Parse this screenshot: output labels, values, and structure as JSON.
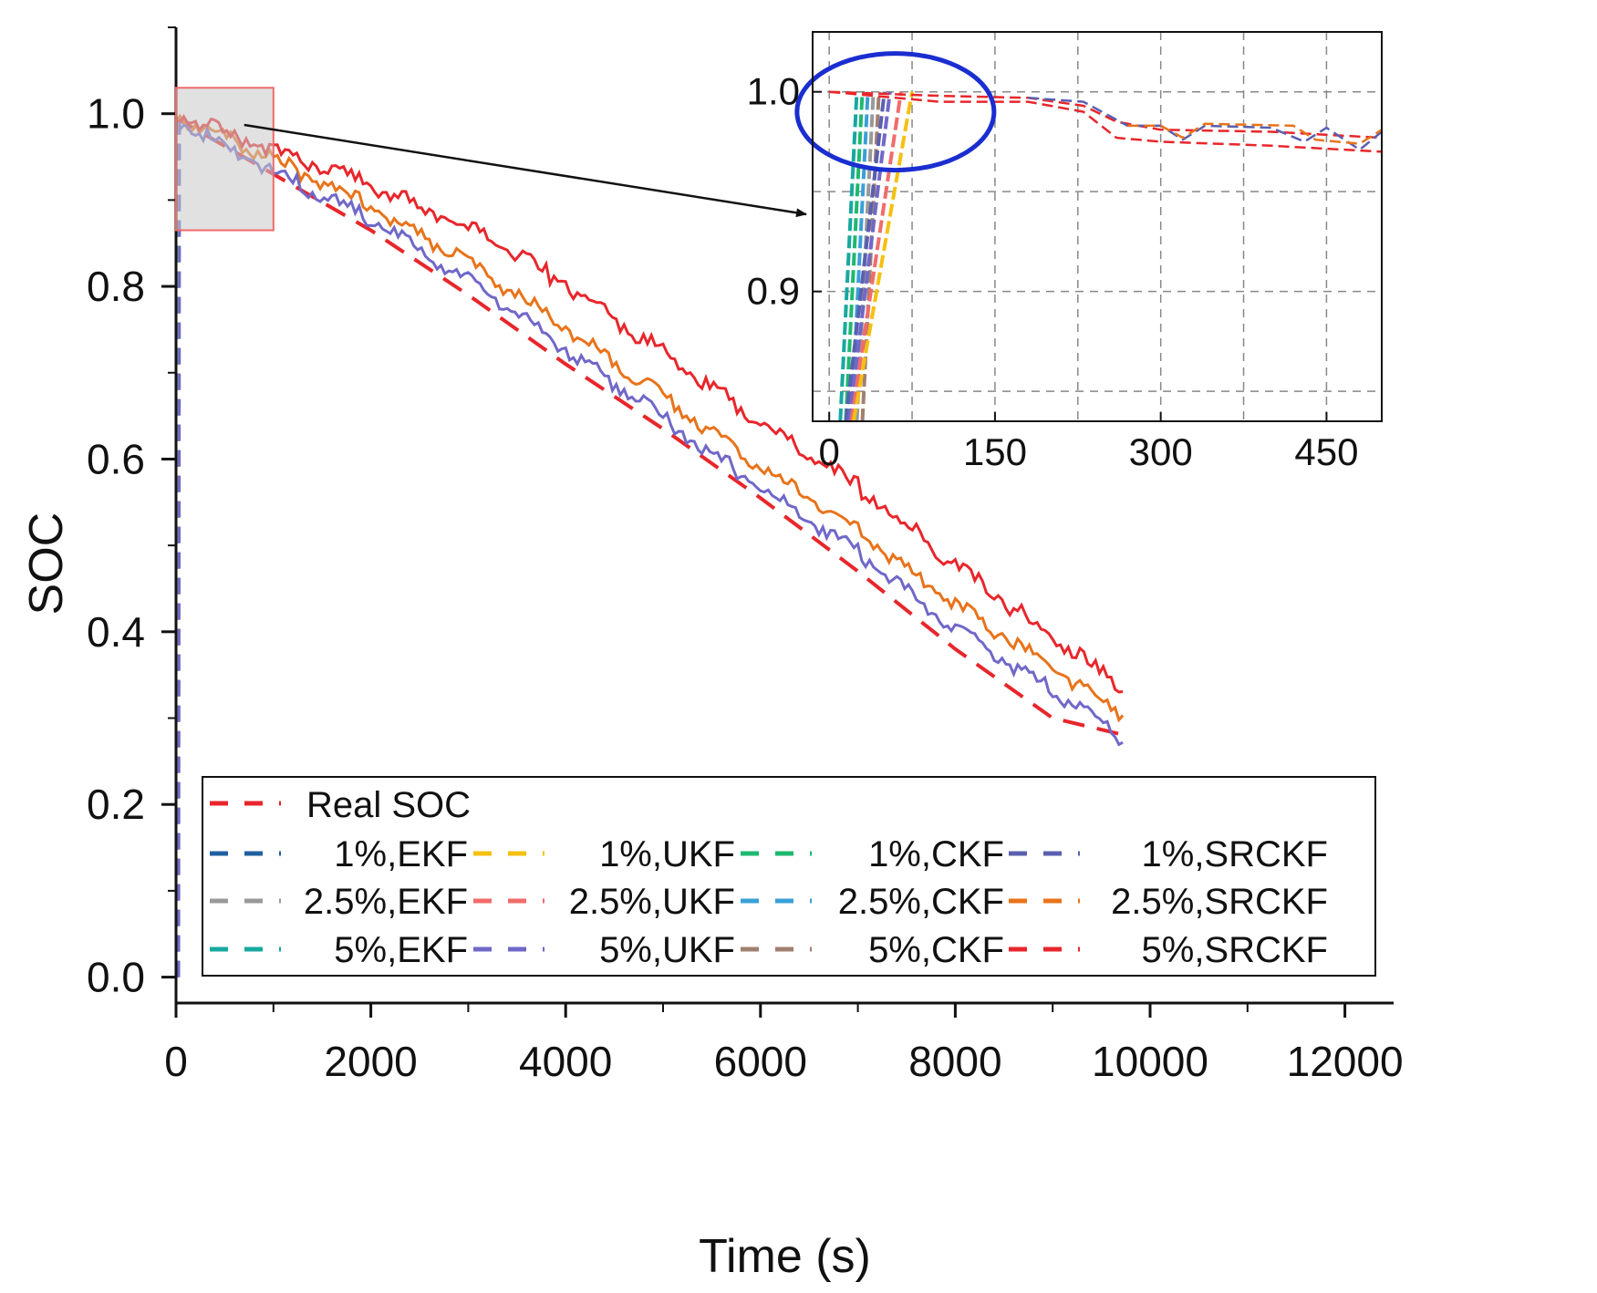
{
  "chart_data": [
    {
      "type": "line",
      "xlabel": "Time (s)",
      "ylabel": "SOC",
      "xlim": [
        0,
        12500
      ],
      "ylim": [
        -0.03,
        1.1
      ],
      "x_ticks": [
        0,
        2000,
        4000,
        6000,
        8000,
        10000,
        12000
      ],
      "x_tick_labels": [
        "0",
        "2000",
        "4000",
        "6000",
        "8000",
        "10000",
        "12000"
      ],
      "y_ticks": [
        0.0,
        0.2,
        0.4,
        0.6,
        0.8,
        1.0
      ],
      "y_tick_labels": [
        "0.0",
        "0.2",
        "0.4",
        "0.6",
        "0.8",
        "1.0"
      ],
      "zoom_region": {
        "x": [
          0,
          1000
        ],
        "y": [
          0.865,
          1.03
        ]
      },
      "legend": {
        "position": "bottom-inside",
        "header": {
          "label": "Real SOC",
          "color": "#e8262b"
        },
        "entries": [
          {
            "label": "1%,EKF",
            "color": "#1f5fa0"
          },
          {
            "label": "1%,UKF",
            "color": "#f5c010"
          },
          {
            "label": "1%,CKF",
            "color": "#1fb870"
          },
          {
            "label": "1%,SRCKF",
            "color": "#5a5fb0"
          },
          {
            "label": "2.5%,EKF",
            "color": "#999999"
          },
          {
            "label": "2.5%,UKF",
            "color": "#f26b6b"
          },
          {
            "label": "2.5%,CKF",
            "color": "#3aa0d8"
          },
          {
            "label": "2.5%,SRCKF",
            "color": "#e8731a"
          },
          {
            "label": "5%,EKF",
            "color": "#17a8a0"
          },
          {
            "label": "5%,UKF",
            "color": "#7068c8"
          },
          {
            "label": "5%,CKF",
            "color": "#a08070"
          },
          {
            "label": "5%,SRCKF",
            "color": "#e8262b"
          }
        ]
      },
      "series": [
        {
          "name": "Real SOC",
          "color": "#e8262b",
          "dash": true,
          "noise": 0,
          "x": [
            0,
            1000,
            2000,
            3000,
            4000,
            5000,
            6000,
            7000,
            8000,
            9000,
            9750
          ],
          "values": [
            0.995,
            0.93,
            0.865,
            0.79,
            0.71,
            0.635,
            0.555,
            0.47,
            0.38,
            0.3,
            0.28
          ]
        },
        {
          "name": "2.5%,SRCKF estimate",
          "color": "#e8731a",
          "dash": false,
          "noise": 0.012,
          "x": [
            0,
            1000,
            2000,
            3000,
            4000,
            5000,
            6000,
            7000,
            8000,
            9000,
            9750
          ],
          "values": [
            0.995,
            0.945,
            0.89,
            0.825,
            0.75,
            0.67,
            0.59,
            0.515,
            0.43,
            0.355,
            0.3
          ]
        },
        {
          "name": "5%,UKF estimate",
          "color": "#7068c8",
          "dash": false,
          "noise": 0.012,
          "x": [
            0,
            1000,
            2000,
            3000,
            4000,
            5000,
            6000,
            7000,
            8000,
            9000,
            9750
          ],
          "values": [
            0.99,
            0.93,
            0.875,
            0.805,
            0.725,
            0.645,
            0.565,
            0.49,
            0.4,
            0.33,
            0.27
          ]
        },
        {
          "name": "5%,SRCKF estimate",
          "color": "#e8262b",
          "dash": false,
          "noise": 0.014,
          "x": [
            0,
            1000,
            2000,
            3000,
            4000,
            5000,
            6000,
            7000,
            8000,
            9000,
            9750
          ],
          "values": [
            0.995,
            0.955,
            0.915,
            0.865,
            0.8,
            0.72,
            0.64,
            0.565,
            0.475,
            0.39,
            0.33
          ]
        }
      ]
    },
    {
      "type": "line",
      "role": "inset",
      "xlim": [
        -15,
        500
      ],
      "ylim": [
        0.835,
        1.03
      ],
      "x_ticks": [
        0,
        150,
        300,
        450
      ],
      "x_tick_labels": [
        "0",
        "150",
        "300",
        "450"
      ],
      "x_minor_ticks": [
        75,
        225,
        375
      ],
      "y_ticks": [
        0.9,
        1.0
      ],
      "y_tick_labels": [
        "0.9",
        "1.0"
      ],
      "y_grid": [
        0.85,
        0.9,
        0.95,
        1.0
      ],
      "grid": true,
      "highlight": {
        "shape": "ellipse",
        "color": "#1a2ed0",
        "center": [
          60,
          0.99
        ],
        "note": "convergence region"
      },
      "series": [
        {
          "name": "Real SOC",
          "color": "#e8262b",
          "x": [
            0,
            100,
            180,
            230,
            260,
            300,
            400,
            500
          ],
          "values": [
            1.0,
            0.998,
            0.997,
            0.993,
            0.985,
            0.981,
            0.98,
            0.977
          ]
        },
        {
          "name": "Real SOC (lower)",
          "color": "#e8262b",
          "x": [
            0,
            100,
            180,
            230,
            260,
            300,
            400,
            500
          ],
          "values": [
            1.0,
            0.995,
            0.995,
            0.99,
            0.977,
            0.975,
            0.973,
            0.97
          ]
        },
        {
          "name": "5%,UKF",
          "color": "#5a5fb0",
          "x": [
            180,
            230,
            270,
            300,
            320,
            340,
            400,
            430,
            450,
            480,
            500
          ],
          "values": [
            0.997,
            0.995,
            0.983,
            0.983,
            0.976,
            0.983,
            0.982,
            0.975,
            0.982,
            0.971,
            0.98
          ]
        },
        {
          "name": "2.5%,SRCKF",
          "color": "#e8731a",
          "x": [
            270,
            300,
            320,
            340,
            420,
            440,
            480,
            500
          ],
          "values": [
            0.983,
            0.983,
            0.977,
            0.984,
            0.983,
            0.976,
            0.974,
            0.981
          ]
        }
      ],
      "converging_traces": [
        {
          "color": "#17a8a0",
          "x_start": 10,
          "x_end": 25
        },
        {
          "color": "#1fb870",
          "x_start": 15,
          "x_end": 30
        },
        {
          "color": "#3aa0d8",
          "x_start": 20,
          "x_end": 35
        },
        {
          "color": "#999999",
          "x_start": 25,
          "x_end": 40
        },
        {
          "color": "#a08070",
          "x_start": 30,
          "x_end": 45
        },
        {
          "color": "#5a5fb0",
          "x_start": 15,
          "x_end": 50
        },
        {
          "color": "#7068c8",
          "x_start": 18,
          "x_end": 55
        },
        {
          "color": "#f26b6b",
          "x_start": 20,
          "x_end": 65
        },
        {
          "color": "#f5c010",
          "x_start": 22,
          "x_end": 75
        }
      ]
    }
  ]
}
